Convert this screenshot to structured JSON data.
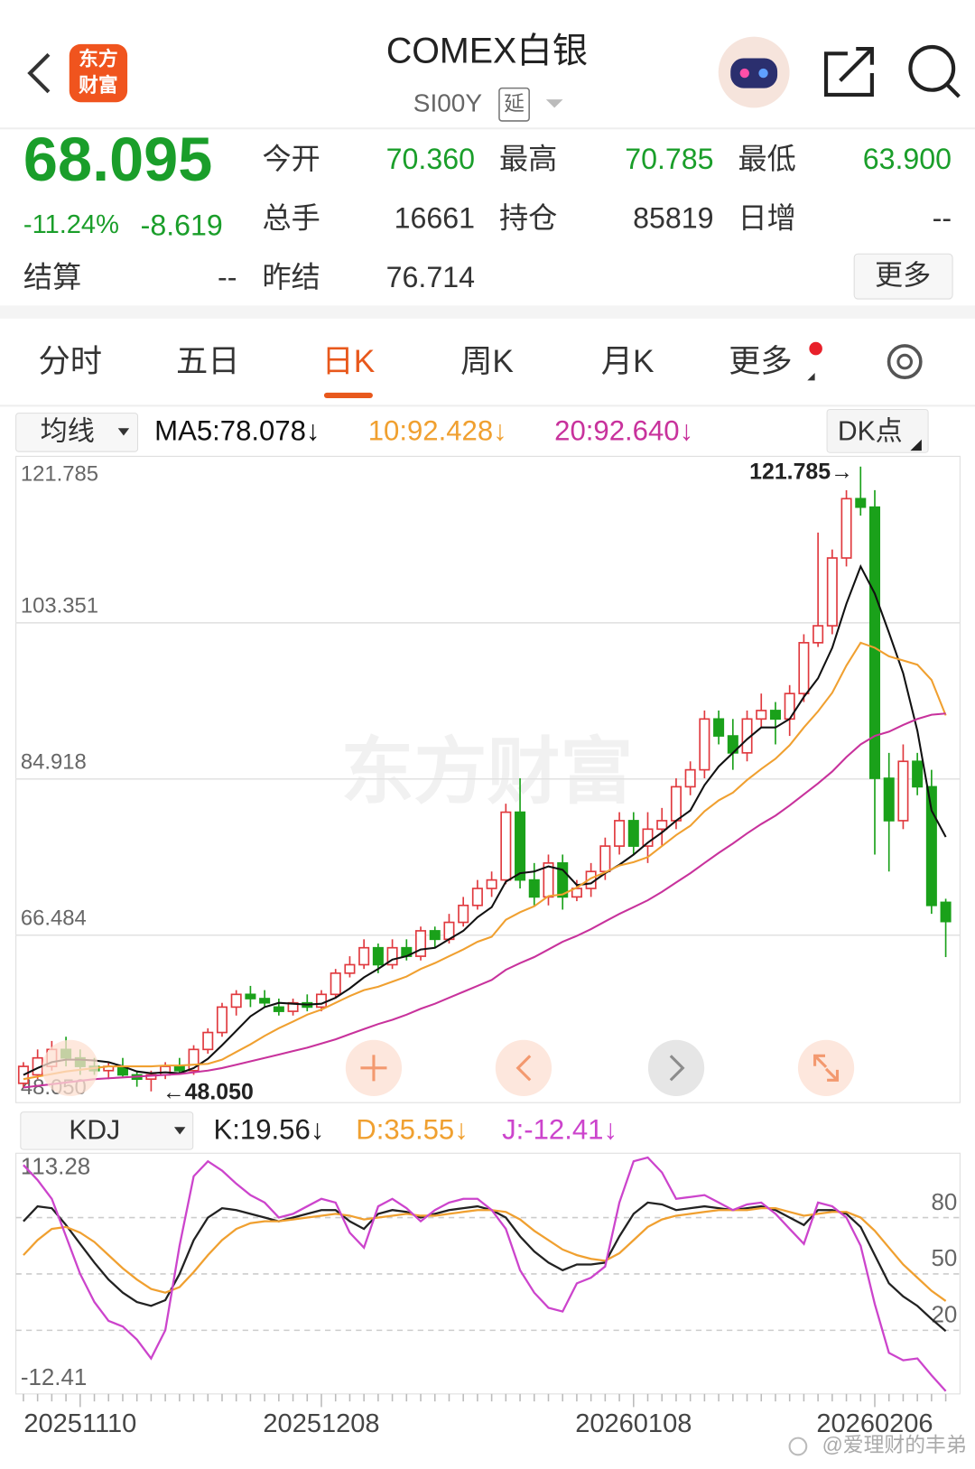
{
  "header": {
    "title": "COMEX白银",
    "code": "SI00Y",
    "delay_tag": "延",
    "logo": [
      "东方",
      "财富"
    ]
  },
  "quote": {
    "price": "68.095",
    "change_pct": "-11.24%",
    "change": "-8.619",
    "rows": [
      [
        {
          "label": "今开",
          "value": "70.360"
        },
        {
          "label": "最高",
          "value": "70.785"
        },
        {
          "label": "最低",
          "value": "63.900"
        }
      ],
      [
        {
          "label": "总手",
          "value": "16661"
        },
        {
          "label": "持仓",
          "value": "85819"
        },
        {
          "label": "日增",
          "value": "--"
        }
      ],
      [
        {
          "label": "结算",
          "value": "--"
        },
        {
          "label": "昨结",
          "value": "76.714"
        }
      ]
    ],
    "more_button": "更多"
  },
  "tabs": [
    "分时",
    "五日",
    "日K",
    "周K",
    "月K",
    "更多"
  ],
  "indicator_bar": {
    "selector": "均线",
    "dk_button": "DK点"
  },
  "kdj_bar": {
    "selector": "KDJ"
  },
  "watermark": "东方财富",
  "credit": "@爱理财的丰弟",
  "chart_data": [
    {
      "type": "candlestick",
      "open": [
        49,
        50,
        51,
        53,
        52,
        51,
        50.5,
        51,
        50,
        49.5,
        50,
        51,
        50.5,
        53,
        55,
        58,
        59.5,
        59,
        58,
        57.5,
        58.5,
        58,
        59.5,
        62,
        63,
        65,
        63,
        65,
        64,
        67,
        66,
        68,
        70,
        72,
        73,
        81,
        73,
        71,
        75,
        71,
        72,
        74,
        77,
        80,
        77,
        79,
        80,
        84,
        86,
        92,
        90,
        88,
        92,
        93,
        92,
        95,
        101,
        103,
        111,
        118,
        117,
        85,
        80,
        87,
        84,
        70.36
      ],
      "high": [
        51.5,
        53,
        54,
        54.5,
        53,
        52,
        51.5,
        52,
        50.5,
        50.5,
        51.5,
        52,
        53.5,
        55.5,
        58.5,
        60,
        60.5,
        60,
        59,
        59,
        59.5,
        60,
        62.5,
        64,
        66,
        65.5,
        66,
        66,
        67.5,
        67.5,
        69,
        71,
        73,
        74,
        82,
        85,
        75,
        76,
        76,
        73,
        75,
        78,
        81,
        81,
        81,
        81.5,
        85,
        87,
        93,
        93,
        92,
        93,
        95,
        94,
        96,
        102,
        114,
        112,
        119,
        121.785,
        119,
        88,
        89,
        88,
        86,
        70.785
      ],
      "low": [
        48.5,
        49.5,
        50.5,
        51,
        50,
        50,
        49.5,
        49.8,
        48.6,
        48.05,
        49.5,
        50,
        50,
        52.5,
        54.5,
        57,
        58,
        58,
        57,
        57,
        57.5,
        57.5,
        59,
        61.5,
        62.5,
        62,
        62.5,
        63.5,
        63.5,
        65,
        65.5,
        67.5,
        69.5,
        71,
        72.5,
        72,
        70,
        70,
        69.5,
        70.5,
        71,
        73,
        76,
        76,
        75,
        77,
        79,
        83,
        85,
        89,
        86,
        87,
        91,
        89,
        90,
        94,
        100.5,
        102,
        110,
        116,
        76,
        74,
        79,
        83,
        69,
        63.9
      ],
      "close": [
        51,
        52,
        53,
        52,
        51,
        50.5,
        51,
        50,
        49.5,
        50,
        51,
        50.5,
        53,
        55,
        58,
        59.5,
        59,
        58.5,
        57.5,
        58.5,
        58,
        59.5,
        62,
        63,
        65,
        63,
        65,
        64,
        67,
        66,
        68,
        70,
        72,
        73,
        81,
        73,
        71,
        75,
        71,
        72,
        74,
        77,
        80,
        77,
        79,
        80,
        84,
        86,
        92,
        90,
        88,
        92,
        93,
        92,
        95,
        101,
        103,
        111,
        118,
        117,
        85,
        80,
        87,
        84,
        70,
        68.095
      ],
      "up_color": "#e0393e",
      "down_color": "#1aa11a",
      "series": [
        {
          "name": "MA5:78.078↓",
          "color": "#111111",
          "values": [
            50,
            50.8,
            51.5,
            51.8,
            51.8,
            51.7,
            51.5,
            51,
            50.4,
            50.2,
            50.3,
            50.2,
            50.8,
            51.9,
            53.5,
            55.2,
            56.9,
            58,
            58.5,
            58.4,
            58.3,
            58.4,
            59.1,
            60.2,
            61.5,
            62.5,
            63.6,
            64,
            64.8,
            65,
            66,
            67,
            68.6,
            69.8,
            72.8,
            73.8,
            74,
            74.6,
            74.2,
            72.4,
            72.6,
            73.8,
            74.8,
            76,
            77.4,
            78.6,
            80,
            81.2,
            84.2,
            86.4,
            88,
            89.6,
            91,
            91,
            92,
            94.6,
            96.8,
            100.4,
            105.6,
            110,
            106.8,
            102.2,
            97.4,
            90.6,
            81.2,
            78.078
          ]
        },
        {
          "name": "10:92.428↓",
          "color": "#f0a030",
          "values": [
            49.5,
            49.8,
            50.1,
            50.4,
            50.6,
            50.8,
            51,
            51,
            51,
            51,
            51.1,
            51.1,
            51.2,
            51.3,
            51.8,
            52.7,
            53.6,
            54.6,
            55.5,
            56.3,
            57.1,
            57.7,
            58.5,
            59.3,
            60,
            60.4,
            61,
            61.6,
            62.5,
            63.2,
            64,
            64.8,
            65.7,
            66.3,
            68.3,
            69.2,
            69.9,
            71.1,
            71.3,
            72.1,
            73.2,
            73.9,
            74.7,
            75.1,
            75.7,
            77,
            78.3,
            79.4,
            81.1,
            82.4,
            83.3,
            84.8,
            86.1,
            87.3,
            88.9,
            91,
            92.9,
            95.1,
            98.3,
            101,
            100.4,
            99.4,
            98.9,
            98.4,
            96.6,
            92.428
          ]
        },
        {
          "name": "20:92.640↓",
          "color": "#c8329c",
          "values": [
            48.5,
            48.7,
            48.9,
            49.1,
            49.3,
            49.5,
            49.6,
            49.7,
            49.8,
            49.9,
            50,
            50.1,
            50.3,
            50.5,
            50.8,
            51.2,
            51.6,
            52,
            52.4,
            52.8,
            53.2,
            53.7,
            54.2,
            54.8,
            55.4,
            56,
            56.5,
            57.1,
            57.8,
            58.4,
            59.1,
            59.8,
            60.5,
            61.2,
            62.4,
            63.2,
            63.9,
            64.8,
            65.7,
            66.4,
            67.2,
            68.1,
            69,
            69.8,
            70.6,
            71.6,
            72.7,
            73.8,
            75,
            76.2,
            77.3,
            78.5,
            79.6,
            80.6,
            81.8,
            83.1,
            84.4,
            85.8,
            87.5,
            89,
            90,
            90.5,
            91.3,
            92,
            92.5,
            92.64
          ]
        }
      ],
      "ylim": [
        48.05,
        121.785
      ],
      "yticks": [
        121.785,
        103.351,
        84.918,
        66.484,
        {
          "value": 48.05,
          "label": "48.050"
        }
      ],
      "grid": true,
      "high_label": "121.785→",
      "low_label": "←48.050"
    },
    {
      "type": "line",
      "categories": [
        null,
        null,
        null,
        null,
        "20251110",
        null,
        null,
        null,
        null,
        null,
        null,
        null,
        null,
        null,
        null,
        null,
        null,
        null,
        null,
        null,
        null,
        "20251208",
        null,
        null,
        null,
        null,
        null,
        null,
        null,
        null,
        null,
        null,
        null,
        null,
        null,
        null,
        null,
        null,
        null,
        null,
        null,
        null,
        null,
        "20260108",
        null,
        null,
        null,
        null,
        null,
        null,
        null,
        null,
        null,
        null,
        null,
        null,
        null,
        null,
        null,
        null,
        "20260206",
        null,
        null,
        null,
        null,
        null
      ],
      "series": [
        {
          "name": "K:19.56↓",
          "color": "#222222",
          "values": [
            78,
            86,
            85,
            76,
            66,
            56,
            47,
            40,
            35,
            33,
            36,
            50,
            68,
            80,
            85,
            84,
            82,
            80,
            78,
            80,
            82,
            84,
            84,
            78,
            74,
            82,
            84,
            83,
            80,
            82,
            84,
            85,
            86,
            84,
            80,
            70,
            62,
            56,
            52,
            55,
            55,
            56,
            70,
            82,
            88,
            87,
            84,
            85,
            86,
            85,
            84,
            85,
            86,
            84,
            80,
            76,
            84,
            84,
            82,
            75,
            60,
            45,
            38,
            33,
            26,
            19.56
          ]
        },
        {
          "name": "D:35.55↓",
          "color": "#f0a030",
          "values": [
            60,
            68,
            74,
            75,
            72,
            67,
            60,
            53,
            47,
            42,
            40,
            43,
            51,
            60,
            68,
            74,
            77,
            78,
            78,
            79,
            80,
            81,
            82,
            81,
            79,
            80,
            81,
            82,
            81,
            81,
            82,
            83,
            84,
            84,
            83,
            79,
            73,
            68,
            63,
            60,
            58,
            57,
            61,
            68,
            75,
            79,
            81,
            82,
            83,
            84,
            84,
            84,
            85,
            85,
            83,
            81,
            82,
            83,
            83,
            80,
            73,
            64,
            55,
            48,
            41,
            35.55
          ]
        },
        {
          "name": "J:-12.41↓",
          "color": "#cc44cc",
          "values": [
            108,
            100,
            90,
            70,
            50,
            35,
            25,
            22,
            15,
            5,
            20,
            65,
            102,
            110,
            105,
            98,
            92,
            88,
            80,
            82,
            86,
            90,
            88,
            72,
            64,
            86,
            90,
            85,
            78,
            84,
            88,
            90,
            90,
            84,
            74,
            52,
            40,
            32,
            30,
            45,
            48,
            54,
            88,
            110,
            112,
            104,
            90,
            91,
            92,
            88,
            84,
            87,
            88,
            82,
            74,
            66,
            88,
            86,
            80,
            65,
            34,
            8,
            4,
            5,
            -4,
            -12.41
          ]
        }
      ],
      "ylim": [
        -12.41,
        113.28
      ],
      "yticks": [
        113.28,
        80,
        50,
        20,
        -12.41
      ],
      "grid": true
    }
  ]
}
